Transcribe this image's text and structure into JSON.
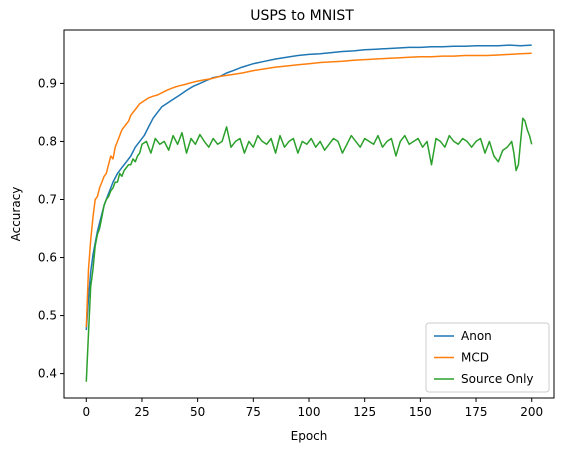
{
  "chart_data": {
    "type": "line",
    "title": "USPS to MNIST",
    "xlabel": "Epoch",
    "ylabel": "Accuracy",
    "xlim": [
      -10,
      210
    ],
    "ylim": [
      0.358,
      0.992
    ],
    "xticks": [
      0,
      25,
      50,
      75,
      100,
      125,
      150,
      175,
      200
    ],
    "yticks": [
      0.4,
      0.5,
      0.6,
      0.7,
      0.8,
      0.9
    ],
    "grid": false,
    "legend_position": "lower-right",
    "series": [
      {
        "name": "Anon",
        "color": "#1f77b4",
        "x": [
          0,
          1,
          2,
          3,
          4,
          5,
          6,
          7,
          8,
          9,
          10,
          11,
          12,
          14,
          16,
          18,
          20,
          22,
          24,
          26,
          28,
          30,
          32,
          34,
          36,
          38,
          40,
          42,
          45,
          48,
          51,
          54,
          57,
          60,
          63,
          66,
          70,
          75,
          80,
          85,
          90,
          95,
          100,
          105,
          110,
          115,
          120,
          125,
          130,
          135,
          140,
          145,
          150,
          155,
          160,
          165,
          170,
          175,
          180,
          185,
          190,
          195,
          200
        ],
        "values": [
          0.475,
          0.53,
          0.575,
          0.605,
          0.625,
          0.645,
          0.66,
          0.675,
          0.69,
          0.7,
          0.71,
          0.72,
          0.73,
          0.745,
          0.755,
          0.765,
          0.775,
          0.79,
          0.8,
          0.81,
          0.825,
          0.84,
          0.85,
          0.86,
          0.865,
          0.87,
          0.875,
          0.88,
          0.888,
          0.895,
          0.9,
          0.905,
          0.91,
          0.912,
          0.918,
          0.922,
          0.928,
          0.934,
          0.938,
          0.942,
          0.945,
          0.948,
          0.95,
          0.951,
          0.953,
          0.955,
          0.956,
          0.958,
          0.959,
          0.96,
          0.961,
          0.962,
          0.962,
          0.963,
          0.963,
          0.964,
          0.964,
          0.965,
          0.965,
          0.965,
          0.966,
          0.965,
          0.966
        ]
      },
      {
        "name": "MCD",
        "color": "#ff7f0e",
        "x": [
          0,
          1,
          2,
          3,
          4,
          5,
          6,
          7,
          8,
          9,
          10,
          11,
          12,
          13,
          14,
          15,
          16,
          17,
          18,
          19,
          20,
          22,
          24,
          26,
          28,
          30,
          32,
          34,
          36,
          38,
          40,
          42,
          44,
          46,
          48,
          50,
          53,
          56,
          60,
          65,
          70,
          75,
          80,
          85,
          90,
          95,
          100,
          105,
          110,
          115,
          120,
          125,
          130,
          135,
          140,
          145,
          150,
          155,
          160,
          165,
          170,
          175,
          180,
          185,
          190,
          195,
          200
        ],
        "values": [
          0.48,
          0.58,
          0.63,
          0.67,
          0.7,
          0.705,
          0.72,
          0.73,
          0.74,
          0.745,
          0.76,
          0.775,
          0.77,
          0.79,
          0.8,
          0.81,
          0.82,
          0.825,
          0.83,
          0.835,
          0.845,
          0.855,
          0.865,
          0.87,
          0.875,
          0.878,
          0.88,
          0.884,
          0.888,
          0.891,
          0.894,
          0.896,
          0.898,
          0.9,
          0.902,
          0.904,
          0.906,
          0.908,
          0.912,
          0.915,
          0.918,
          0.922,
          0.925,
          0.928,
          0.93,
          0.932,
          0.934,
          0.936,
          0.937,
          0.938,
          0.94,
          0.941,
          0.942,
          0.943,
          0.944,
          0.945,
          0.946,
          0.946,
          0.947,
          0.947,
          0.948,
          0.948,
          0.948,
          0.949,
          0.95,
          0.951,
          0.952
        ]
      },
      {
        "name": "Source Only",
        "color": "#2ca02c",
        "x": [
          0,
          1,
          2,
          3,
          4,
          5,
          6,
          7,
          8,
          9,
          10,
          11,
          12,
          13,
          14,
          15,
          16,
          17,
          18,
          19,
          20,
          21,
          22,
          23,
          24,
          25,
          27,
          29,
          31,
          33,
          35,
          37,
          39,
          41,
          43,
          45,
          47,
          49,
          51,
          53,
          55,
          57,
          59,
          61,
          63,
          65,
          67,
          69,
          71,
          73,
          75,
          77,
          79,
          81,
          83,
          85,
          87,
          89,
          91,
          93,
          95,
          97,
          99,
          101,
          103,
          105,
          107,
          109,
          111,
          113,
          115,
          117,
          119,
          121,
          123,
          125,
          127,
          129,
          131,
          133,
          135,
          137,
          139,
          141,
          143,
          145,
          147,
          149,
          151,
          153,
          155,
          157,
          159,
          161,
          163,
          165,
          167,
          169,
          171,
          173,
          175,
          177,
          179,
          181,
          183,
          185,
          187,
          189,
          190,
          191,
          192,
          193,
          194,
          195,
          196,
          197,
          198,
          199,
          200
        ],
        "values": [
          0.386,
          0.47,
          0.55,
          0.58,
          0.62,
          0.64,
          0.65,
          0.67,
          0.69,
          0.7,
          0.705,
          0.715,
          0.72,
          0.73,
          0.73,
          0.745,
          0.74,
          0.75,
          0.755,
          0.76,
          0.76,
          0.77,
          0.765,
          0.775,
          0.78,
          0.795,
          0.8,
          0.78,
          0.805,
          0.795,
          0.8,
          0.785,
          0.81,
          0.795,
          0.815,
          0.78,
          0.805,
          0.795,
          0.812,
          0.8,
          0.79,
          0.805,
          0.795,
          0.8,
          0.825,
          0.79,
          0.8,
          0.805,
          0.78,
          0.8,
          0.79,
          0.81,
          0.8,
          0.795,
          0.805,
          0.78,
          0.81,
          0.79,
          0.8,
          0.805,
          0.78,
          0.8,
          0.795,
          0.805,
          0.79,
          0.8,
          0.785,
          0.795,
          0.805,
          0.8,
          0.78,
          0.795,
          0.81,
          0.8,
          0.79,
          0.805,
          0.8,
          0.795,
          0.81,
          0.79,
          0.8,
          0.805,
          0.775,
          0.8,
          0.81,
          0.795,
          0.8,
          0.805,
          0.79,
          0.8,
          0.76,
          0.805,
          0.8,
          0.79,
          0.81,
          0.8,
          0.795,
          0.805,
          0.8,
          0.79,
          0.8,
          0.805,
          0.78,
          0.8,
          0.775,
          0.765,
          0.785,
          0.79,
          0.795,
          0.8,
          0.78,
          0.75,
          0.76,
          0.8,
          0.84,
          0.835,
          0.82,
          0.81,
          0.795
        ]
      }
    ]
  }
}
